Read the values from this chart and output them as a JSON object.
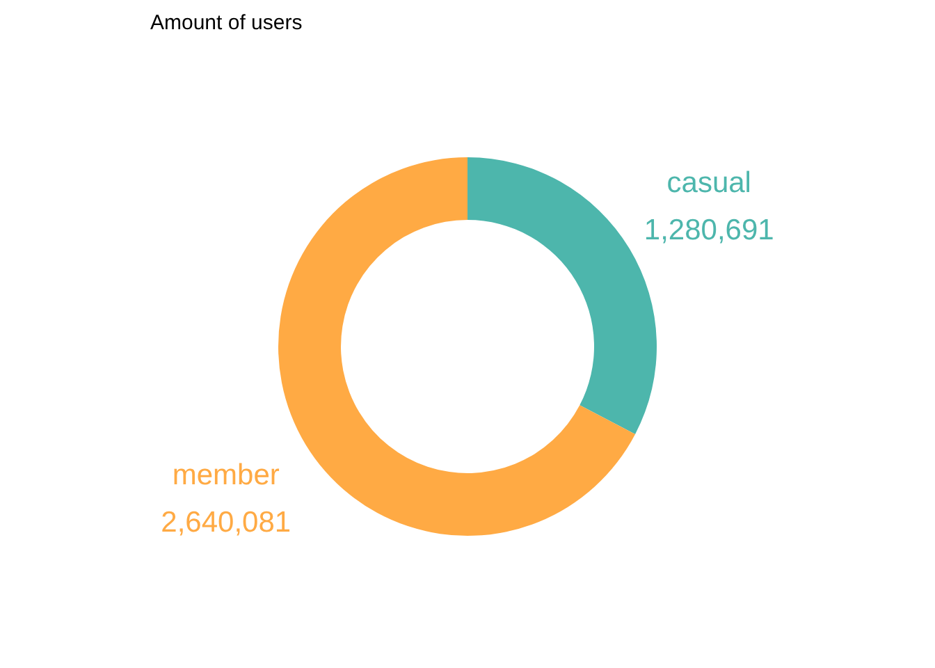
{
  "chart_data": {
    "type": "donut",
    "title": "Amount of users",
    "categories": [
      "casual",
      "member"
    ],
    "values": [
      1280691,
      2640081
    ],
    "colors": [
      "#4db6ac",
      "#ffaa44"
    ],
    "value_labels": [
      "1,280,691",
      "2,640,081"
    ]
  }
}
